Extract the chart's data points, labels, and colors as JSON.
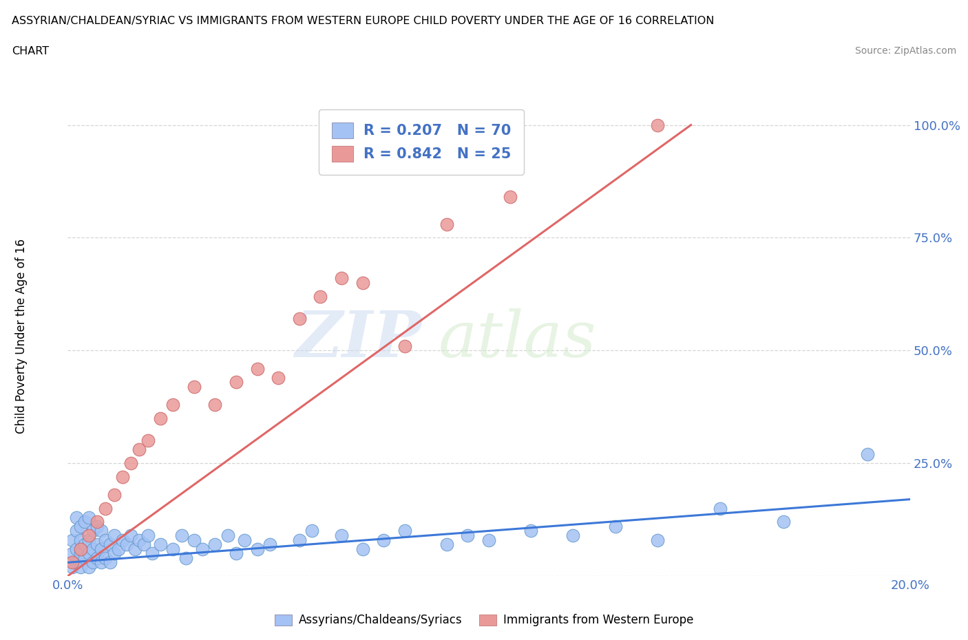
{
  "title_line1": "ASSYRIAN/CHALDEAN/SYRIAC VS IMMIGRANTS FROM WESTERN EUROPE CHILD POVERTY UNDER THE AGE OF 16 CORRELATION",
  "title_line2": "CHART",
  "source": "Source: ZipAtlas.com",
  "ylabel": "Child Poverty Under the Age of 16",
  "xlim": [
    0.0,
    0.2
  ],
  "ylim": [
    0.0,
    1.05
  ],
  "xticks": [
    0.0,
    0.04,
    0.08,
    0.12,
    0.16,
    0.2
  ],
  "xticklabels": [
    "0.0%",
    "",
    "",
    "",
    "",
    "20.0%"
  ],
  "ytick_positions": [
    0.0,
    0.25,
    0.5,
    0.75,
    1.0
  ],
  "yticklabels": [
    "",
    "25.0%",
    "50.0%",
    "75.0%",
    "100.0%"
  ],
  "blue_color": "#a4c2f4",
  "pink_color": "#ea9999",
  "blue_line_color": "#3c78d8",
  "pink_line_color": "#e06666",
  "R_blue": 0.207,
  "N_blue": 70,
  "R_pink": 0.842,
  "N_pink": 25,
  "watermark_zip": "ZIP",
  "watermark_atlas": "atlas",
  "blue_scatter_x": [
    0.001,
    0.001,
    0.001,
    0.002,
    0.002,
    0.002,
    0.002,
    0.003,
    0.003,
    0.003,
    0.003,
    0.004,
    0.004,
    0.004,
    0.005,
    0.005,
    0.005,
    0.005,
    0.006,
    0.006,
    0.006,
    0.007,
    0.007,
    0.007,
    0.008,
    0.008,
    0.008,
    0.009,
    0.009,
    0.01,
    0.01,
    0.011,
    0.011,
    0.012,
    0.013,
    0.014,
    0.015,
    0.016,
    0.017,
    0.018,
    0.019,
    0.02,
    0.022,
    0.025,
    0.027,
    0.028,
    0.03,
    0.032,
    0.035,
    0.038,
    0.04,
    0.042,
    0.045,
    0.048,
    0.055,
    0.058,
    0.065,
    0.07,
    0.075,
    0.08,
    0.09,
    0.095,
    0.1,
    0.11,
    0.12,
    0.13,
    0.14,
    0.155,
    0.17,
    0.19
  ],
  "blue_scatter_y": [
    0.02,
    0.05,
    0.08,
    0.03,
    0.06,
    0.1,
    0.13,
    0.02,
    0.05,
    0.08,
    0.11,
    0.04,
    0.07,
    0.12,
    0.02,
    0.05,
    0.08,
    0.13,
    0.03,
    0.06,
    0.1,
    0.04,
    0.07,
    0.11,
    0.03,
    0.06,
    0.1,
    0.04,
    0.08,
    0.03,
    0.07,
    0.05,
    0.09,
    0.06,
    0.08,
    0.07,
    0.09,
    0.06,
    0.08,
    0.07,
    0.09,
    0.05,
    0.07,
    0.06,
    0.09,
    0.04,
    0.08,
    0.06,
    0.07,
    0.09,
    0.05,
    0.08,
    0.06,
    0.07,
    0.08,
    0.1,
    0.09,
    0.06,
    0.08,
    0.1,
    0.07,
    0.09,
    0.08,
    0.1,
    0.09,
    0.11,
    0.08,
    0.15,
    0.12,
    0.27
  ],
  "pink_scatter_x": [
    0.001,
    0.003,
    0.005,
    0.007,
    0.009,
    0.011,
    0.013,
    0.015,
    0.017,
    0.019,
    0.022,
    0.025,
    0.03,
    0.035,
    0.04,
    0.045,
    0.05,
    0.055,
    0.06,
    0.065,
    0.07,
    0.08,
    0.09,
    0.105,
    0.14
  ],
  "pink_scatter_y": [
    0.03,
    0.06,
    0.09,
    0.12,
    0.15,
    0.18,
    0.22,
    0.25,
    0.28,
    0.3,
    0.35,
    0.38,
    0.42,
    0.38,
    0.43,
    0.46,
    0.44,
    0.57,
    0.62,
    0.66,
    0.65,
    0.51,
    0.78,
    0.84,
    1.0
  ],
  "blue_line_x": [
    0.0,
    0.2
  ],
  "blue_line_y": [
    0.03,
    0.17
  ],
  "pink_line_x": [
    0.0,
    0.148
  ],
  "pink_line_y": [
    0.0,
    1.0
  ]
}
